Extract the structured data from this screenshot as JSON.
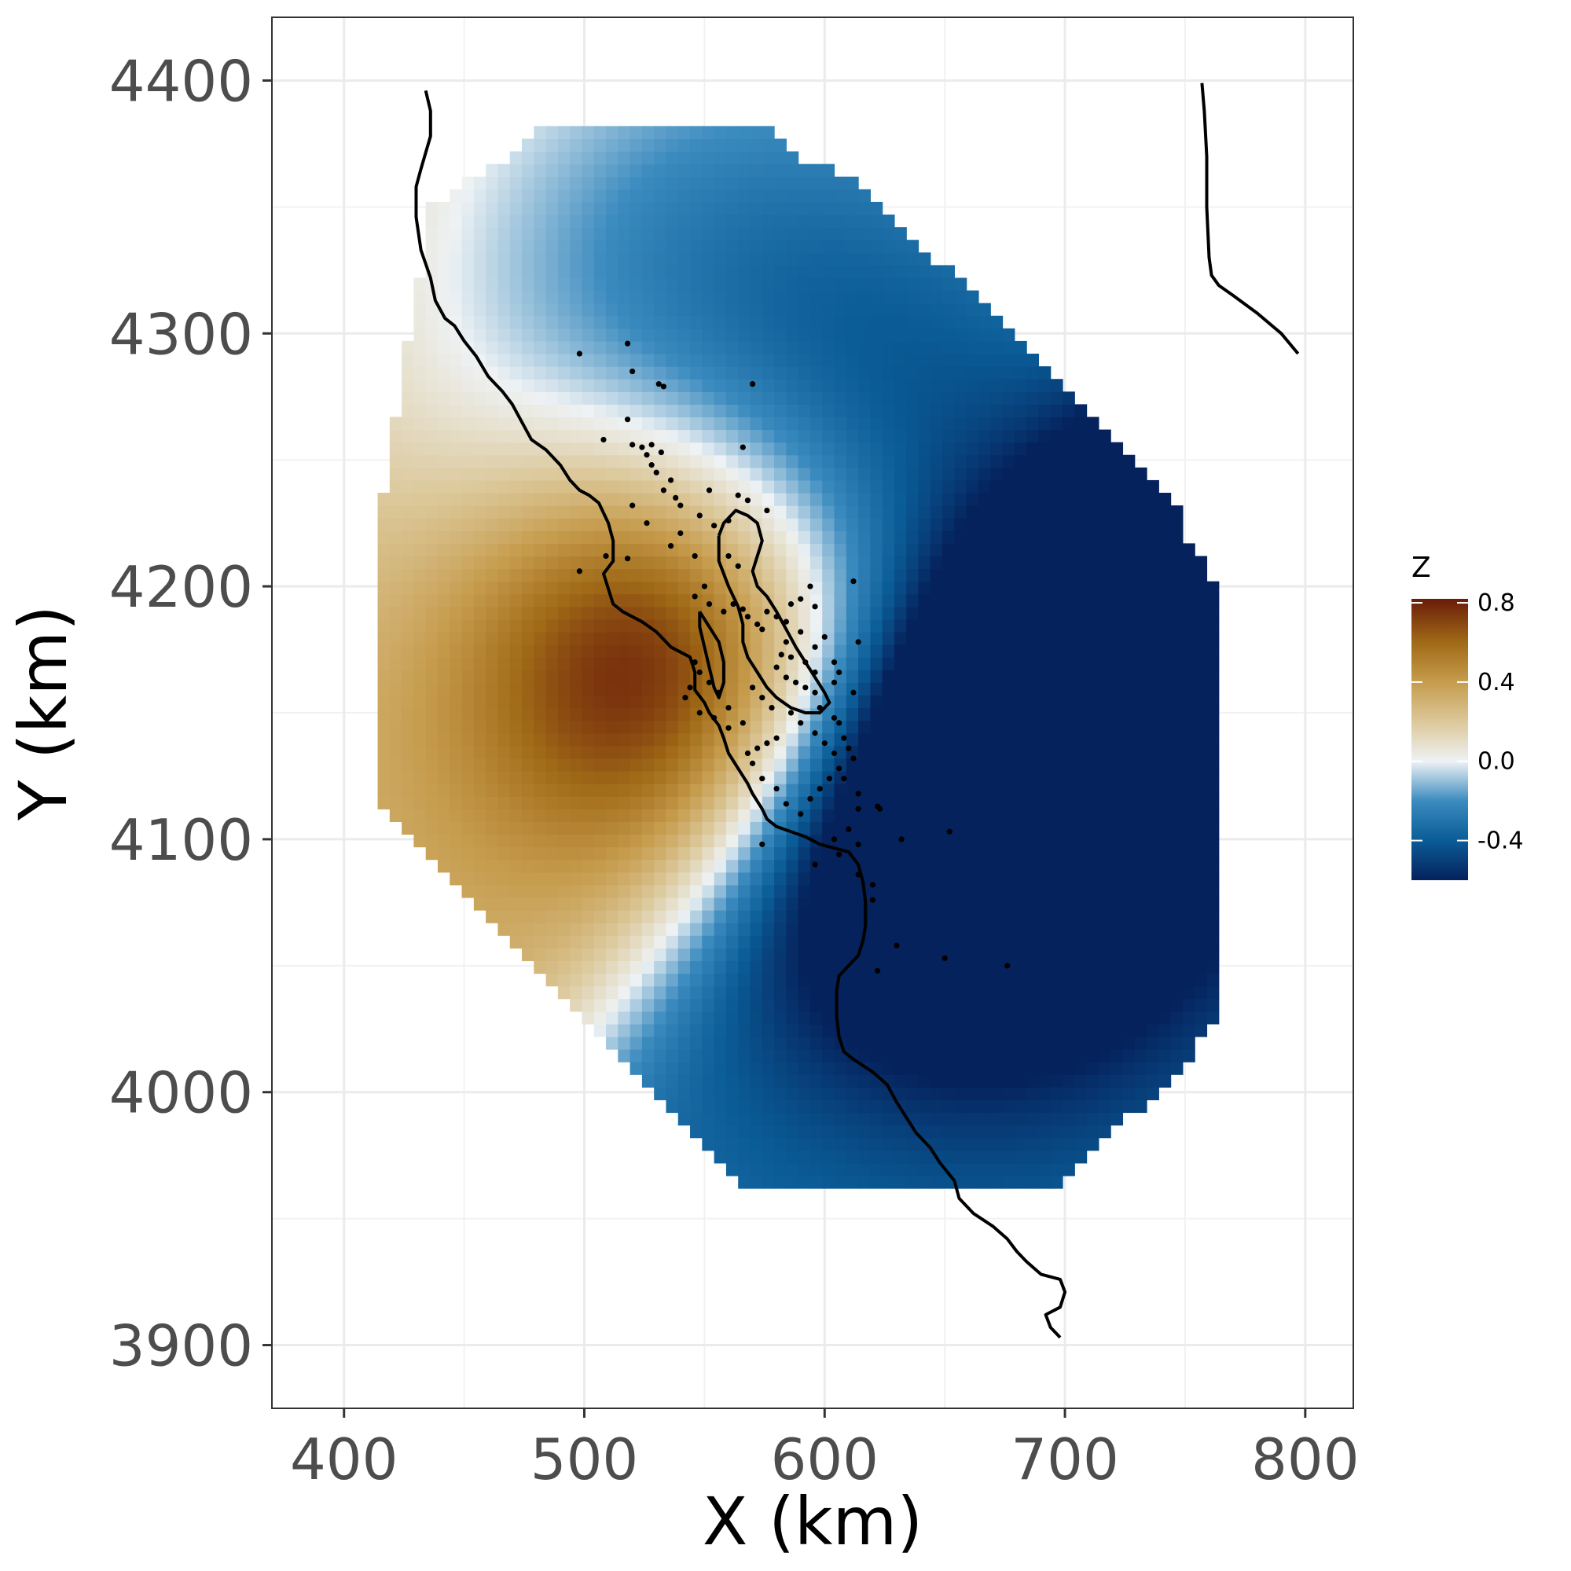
{
  "chart_data": {
    "type": "heatmap",
    "title": "",
    "xlabel": "X (km)",
    "ylabel": "Y (km)",
    "xlim": [
      370,
      820
    ],
    "ylim": [
      3875,
      4425
    ],
    "xticks": [
      400,
      500,
      600,
      700,
      800
    ],
    "yticks": [
      3900,
      4000,
      4100,
      4200,
      4300,
      4400
    ],
    "grid": true,
    "legend": {
      "title": "Z",
      "position": "right",
      "range": [
        -0.6,
        0.82
      ],
      "ticks": [
        0.8,
        0.4,
        0.0,
        -0.4
      ],
      "tick_labels": [
        "0.8",
        "0.4",
        "0.0",
        "-0.4"
      ],
      "colors": [
        {
          "value": -0.6,
          "color": "#05225c"
        },
        {
          "value": -0.4,
          "color": "#0a5c97"
        },
        {
          "value": -0.2,
          "color": "#3b8bbf"
        },
        {
          "value": 0.0,
          "color": "#eef2f4"
        },
        {
          "value": 0.2,
          "color": "#dcc89a"
        },
        {
          "value": 0.4,
          "color": "#c69c4d"
        },
        {
          "value": 0.6,
          "color": "#a06a17"
        },
        {
          "value": 0.82,
          "color": "#6a1c08"
        }
      ]
    },
    "prediction_region": [
      [
        414,
        4222
      ],
      [
        436,
        4350
      ],
      [
        476,
        4375
      ],
      [
        480,
        4380
      ],
      [
        578,
        4380
      ],
      [
        584,
        4373
      ],
      [
        620,
        4356
      ],
      [
        632,
        4340
      ],
      [
        660,
        4318
      ],
      [
        674,
        4302
      ],
      [
        700,
        4280
      ],
      [
        716,
        4262
      ],
      [
        744,
        4235
      ],
      [
        752,
        4218
      ],
      [
        762,
        4200
      ],
      [
        762,
        4025
      ],
      [
        756,
        4020
      ],
      [
        744,
        4004
      ],
      [
        726,
        3990
      ],
      [
        700,
        3963
      ],
      [
        692,
        3962
      ],
      [
        566,
        3962
      ],
      [
        552,
        3975
      ],
      [
        526,
        4000
      ],
      [
        490,
        4038
      ],
      [
        470,
        4060
      ],
      [
        448,
        4082
      ],
      [
        426,
        4102
      ],
      [
        416,
        4110
      ],
      [
        414,
        4120
      ]
    ],
    "field_peaks": [
      {
        "x": 533,
        "y": 4175,
        "z": 0.82,
        "spread": 60
      },
      {
        "x": 662,
        "y": 4105,
        "z": -0.62,
        "spread": 70
      },
      {
        "x": 555,
        "y": 4310,
        "z": -0.55,
        "spread": 110
      },
      {
        "x": 700,
        "y": 4240,
        "z": -0.45,
        "spread": 110
      }
    ],
    "coastline": [
      [
        [
          434,
          4396
        ],
        [
          436,
          4388
        ],
        [
          436,
          4378
        ],
        [
          432,
          4365
        ],
        [
          430,
          4358
        ],
        [
          430,
          4346
        ],
        [
          432,
          4333
        ],
        [
          436,
          4322
        ],
        [
          438,
          4313
        ],
        [
          442,
          4306
        ],
        [
          446,
          4303
        ],
        [
          450,
          4297
        ],
        [
          455,
          4291
        ],
        [
          460,
          4283
        ],
        [
          466,
          4277
        ],
        [
          470,
          4272
        ],
        [
          474,
          4265
        ],
        [
          478,
          4258
        ],
        [
          484,
          4254
        ],
        [
          490,
          4248
        ],
        [
          494,
          4242
        ],
        [
          498,
          4238
        ],
        [
          502,
          4236
        ],
        [
          506,
          4233
        ],
        [
          510,
          4225
        ],
        [
          512,
          4218
        ],
        [
          512,
          4210
        ],
        [
          508,
          4205
        ],
        [
          510,
          4199
        ],
        [
          512,
          4193
        ],
        [
          516,
          4190
        ],
        [
          524,
          4186
        ],
        [
          530,
          4182
        ],
        [
          536,
          4176
        ],
        [
          544,
          4172
        ],
        [
          546,
          4166
        ],
        [
          546,
          4159
        ],
        [
          550,
          4154
        ],
        [
          552,
          4150
        ],
        [
          556,
          4145
        ],
        [
          558,
          4140
        ],
        [
          560,
          4134
        ],
        [
          564,
          4128
        ],
        [
          568,
          4122
        ],
        [
          570,
          4118
        ],
        [
          574,
          4112
        ],
        [
          576,
          4108
        ],
        [
          580,
          4105
        ],
        [
          586,
          4103
        ],
        [
          592,
          4101
        ],
        [
          598,
          4098
        ],
        [
          602,
          4097
        ],
        [
          610,
          4095
        ],
        [
          614,
          4090
        ],
        [
          616,
          4083
        ],
        [
          617,
          4075
        ],
        [
          617,
          4066
        ],
        [
          616,
          4060
        ],
        [
          614,
          4054
        ],
        [
          610,
          4050
        ],
        [
          606,
          4046
        ],
        [
          605,
          4040
        ],
        [
          605,
          4030
        ],
        [
          606,
          4022
        ],
        [
          608,
          4016
        ],
        [
          612,
          4013
        ],
        [
          620,
          4008
        ],
        [
          626,
          4003
        ],
        [
          630,
          3996
        ],
        [
          634,
          3990
        ],
        [
          638,
          3984
        ],
        [
          644,
          3978
        ],
        [
          648,
          3972
        ],
        [
          654,
          3965
        ],
        [
          656,
          3958
        ],
        [
          662,
          3952
        ],
        [
          670,
          3947
        ],
        [
          676,
          3942
        ],
        [
          680,
          3937
        ],
        [
          684,
          3933
        ],
        [
          690,
          3928
        ],
        [
          698,
          3926
        ],
        [
          700,
          3921
        ],
        [
          698,
          3915
        ],
        [
          692,
          3912
        ],
        [
          694,
          3907
        ],
        [
          698,
          3903
        ]
      ],
      [
        [
          556,
          4220
        ],
        [
          558,
          4225
        ],
        [
          563,
          4230
        ],
        [
          568,
          4228
        ],
        [
          572,
          4225
        ],
        [
          574,
          4218
        ],
        [
          572,
          4212
        ],
        [
          570,
          4206
        ],
        [
          572,
          4200
        ],
        [
          576,
          4196
        ],
        [
          580,
          4190
        ],
        [
          584,
          4183
        ],
        [
          588,
          4176
        ],
        [
          592,
          4170
        ],
        [
          596,
          4164
        ],
        [
          600,
          4158
        ],
        [
          602,
          4154
        ],
        [
          598,
          4150
        ],
        [
          592,
          4150
        ],
        [
          586,
          4152
        ],
        [
          580,
          4156
        ],
        [
          576,
          4160
        ],
        [
          572,
          4166
        ],
        [
          568,
          4172
        ],
        [
          566,
          4178
        ],
        [
          566,
          4185
        ],
        [
          564,
          4192
        ],
        [
          560,
          4200
        ],
        [
          556,
          4210
        ],
        [
          556,
          4220
        ]
      ],
      [
        [
          548,
          4190
        ],
        [
          552,
          4184
        ],
        [
          556,
          4178
        ],
        [
          558,
          4170
        ],
        [
          558,
          4162
        ],
        [
          556,
          4156
        ],
        [
          554,
          4160
        ],
        [
          552,
          4168
        ],
        [
          550,
          4176
        ],
        [
          548,
          4184
        ],
        [
          548,
          4190
        ]
      ]
    ],
    "boundary": [
      [
        757,
        4399
      ],
      [
        758,
        4388
      ],
      [
        759,
        4370
      ],
      [
        759,
        4350
      ],
      [
        760,
        4330
      ],
      [
        761,
        4323
      ],
      [
        764,
        4319
      ],
      [
        770,
        4315
      ],
      [
        780,
        4308
      ],
      [
        790,
        4300
      ],
      [
        797,
        4292
      ]
    ],
    "stations": [
      [
        498,
        4292
      ],
      [
        518,
        4296
      ],
      [
        520,
        4285
      ],
      [
        531,
        4280
      ],
      [
        533,
        4279
      ],
      [
        570,
        4280
      ],
      [
        518,
        4266
      ],
      [
        508,
        4258
      ],
      [
        520,
        4256
      ],
      [
        524,
        4255
      ],
      [
        528,
        4256
      ],
      [
        526,
        4252
      ],
      [
        528,
        4248
      ],
      [
        530,
        4245
      ],
      [
        532,
        4253
      ],
      [
        533,
        4238
      ],
      [
        536,
        4242
      ],
      [
        538,
        4235
      ],
      [
        540,
        4232
      ],
      [
        552,
        4238
      ],
      [
        564,
        4236
      ],
      [
        566,
        4255
      ],
      [
        568,
        4234
      ],
      [
        576,
        4230
      ],
      [
        560,
        4226
      ],
      [
        548,
        4228
      ],
      [
        540,
        4221
      ],
      [
        536,
        4216
      ],
      [
        526,
        4225
      ],
      [
        520,
        4232
      ],
      [
        518,
        4211
      ],
      [
        509,
        4212
      ],
      [
        498,
        4206
      ],
      [
        546,
        4212
      ],
      [
        554,
        4224
      ],
      [
        560,
        4212
      ],
      [
        564,
        4208
      ],
      [
        550,
        4200
      ],
      [
        546,
        4196
      ],
      [
        552,
        4193
      ],
      [
        558,
        4190
      ],
      [
        562,
        4193
      ],
      [
        566,
        4191
      ],
      [
        568,
        4188
      ],
      [
        572,
        4185
      ],
      [
        574,
        4183
      ],
      [
        576,
        4190
      ],
      [
        580,
        4188
      ],
      [
        584,
        4186
      ],
      [
        586,
        4193
      ],
      [
        590,
        4195
      ],
      [
        594,
        4200
      ],
      [
        596,
        4192
      ],
      [
        590,
        4182
      ],
      [
        584,
        4178
      ],
      [
        582,
        4173
      ],
      [
        580,
        4168
      ],
      [
        584,
        4164
      ],
      [
        588,
        4162
      ],
      [
        592,
        4160
      ],
      [
        596,
        4158
      ],
      [
        598,
        4152
      ],
      [
        604,
        4148
      ],
      [
        606,
        4146
      ],
      [
        608,
        4140
      ],
      [
        610,
        4136
      ],
      [
        612,
        4132
      ],
      [
        606,
        4128
      ],
      [
        602,
        4124
      ],
      [
        598,
        4120
      ],
      [
        594,
        4116
      ],
      [
        590,
        4110
      ],
      [
        584,
        4114
      ],
      [
        580,
        4120
      ],
      [
        574,
        4124
      ],
      [
        570,
        4130
      ],
      [
        568,
        4134
      ],
      [
        572,
        4136
      ],
      [
        576,
        4138
      ],
      [
        580,
        4140
      ],
      [
        566,
        4146
      ],
      [
        560,
        4152
      ],
      [
        556,
        4158
      ],
      [
        552,
        4162
      ],
      [
        548,
        4166
      ],
      [
        546,
        4170
      ],
      [
        544,
        4160
      ],
      [
        542,
        4156
      ],
      [
        548,
        4150
      ],
      [
        554,
        4148
      ],
      [
        560,
        4144
      ],
      [
        570,
        4160
      ],
      [
        574,
        4156
      ],
      [
        578,
        4152
      ],
      [
        586,
        4150
      ],
      [
        590,
        4146
      ],
      [
        596,
        4142
      ],
      [
        600,
        4138
      ],
      [
        604,
        4134
      ],
      [
        608,
        4124
      ],
      [
        614,
        4118
      ],
      [
        614,
        4112
      ],
      [
        622,
        4113
      ],
      [
        623,
        4112
      ],
      [
        632,
        4100
      ],
      [
        652,
        4103
      ],
      [
        604,
        4100
      ],
      [
        606,
        4094
      ],
      [
        596,
        4090
      ],
      [
        614,
        4086
      ],
      [
        620,
        4082
      ],
      [
        620,
        4076
      ],
      [
        630,
        4058
      ],
      [
        622,
        4048
      ],
      [
        650,
        4053
      ],
      [
        676,
        4050
      ],
      [
        612,
        4202
      ],
      [
        614,
        4178
      ],
      [
        606,
        4166
      ],
      [
        612,
        4158
      ],
      [
        604,
        4162
      ],
      [
        596,
        4166
      ],
      [
        592,
        4170
      ],
      [
        586,
        4172
      ],
      [
        596,
        4176
      ],
      [
        600,
        4180
      ],
      [
        604,
        4170
      ],
      [
        574,
        4098
      ],
      [
        614,
        4098
      ],
      [
        610,
        4104
      ]
    ]
  }
}
